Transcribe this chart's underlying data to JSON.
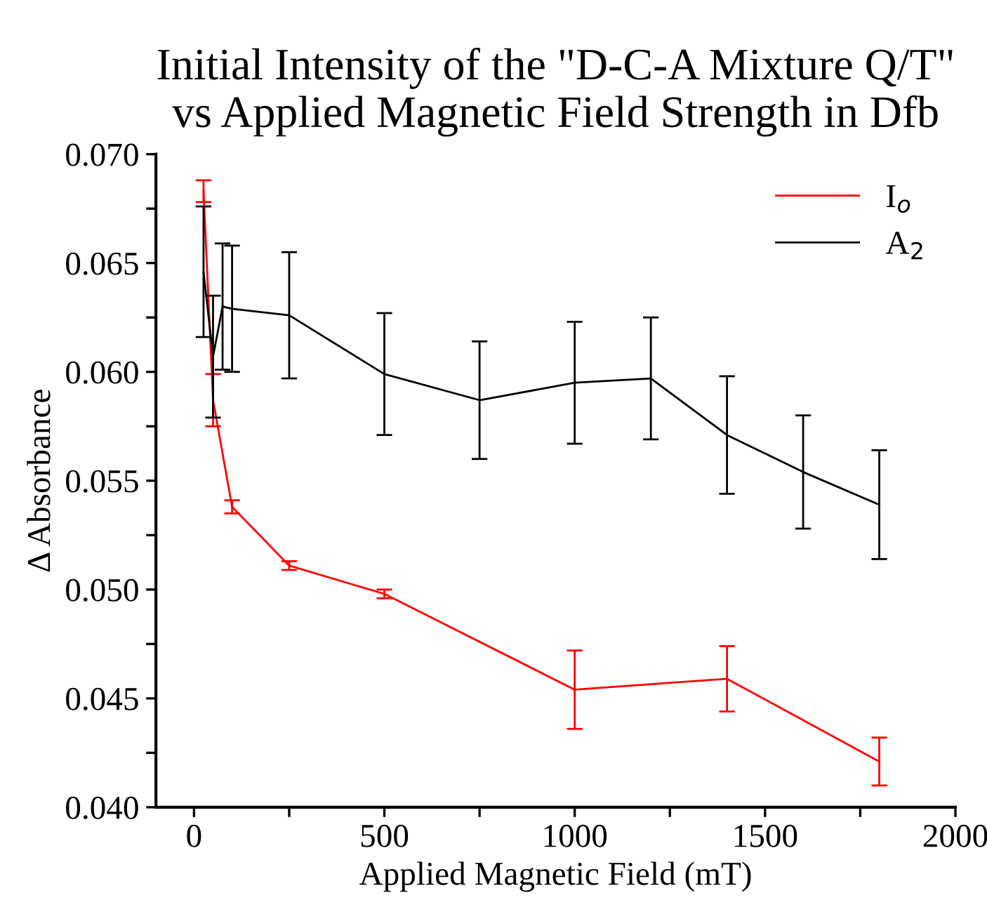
{
  "chart_data": {
    "type": "line",
    "title": "Initial Intensity of the \"D-C-A Mixture Q/T\"\nvs Applied Magnetic Field Strength in Dfb",
    "xlabel": "Applied Magnetic Field (mT)",
    "ylabel": "Δ Absorbance",
    "series": [
      {
        "name": "I$_{o}$",
        "color": "#ff0000",
        "x": [
          25,
          50,
          100,
          250,
          500,
          1000,
          1400,
          1800
        ],
        "values": [
          0.0683,
          0.0587,
          0.0538,
          0.0511,
          0.0498,
          0.0454,
          0.0459,
          0.0421
        ],
        "errors": [
          0.0005,
          0.0012,
          0.0003,
          0.0002,
          0.0002,
          0.0018,
          0.0015,
          0.0011
        ]
      },
      {
        "name": "A$_{2}$",
        "color": "#000000",
        "x": [
          25,
          50,
          75,
          100,
          250,
          500,
          750,
          1000,
          1200,
          1400,
          1600,
          1800
        ],
        "values": [
          0.0646,
          0.0607,
          0.063,
          0.0629,
          0.0626,
          0.0599,
          0.0587,
          0.0595,
          0.0597,
          0.0571,
          0.0554,
          0.0539
        ],
        "errors": [
          0.003,
          0.0028,
          0.0029,
          0.0029,
          0.0029,
          0.0028,
          0.0027,
          0.0028,
          0.0028,
          0.0027,
          0.0026,
          0.0025
        ]
      }
    ],
    "xlim": [
      -100,
      2000
    ],
    "xticks": [
      0,
      {
        "value": 250,
        "label": null
      },
      500,
      {
        "value": 750,
        "label": null
      },
      1000,
      {
        "value": 1250,
        "label": null
      },
      1500,
      {
        "value": 1750,
        "label": null
      },
      2000
    ],
    "ylim": [
      0.04,
      0.07
    ],
    "yticks": [
      {
        "value": 0.04,
        "label": "0.040"
      },
      {
        "value": 0.0425,
        "label": null
      },
      {
        "value": 0.045,
        "label": "0.045"
      },
      {
        "value": 0.0475,
        "label": null
      },
      {
        "value": 0.05,
        "label": "0.050"
      },
      {
        "value": 0.0525,
        "label": null
      },
      {
        "value": 0.055,
        "label": "0.055"
      },
      {
        "value": 0.0575,
        "label": null
      },
      {
        "value": 0.06,
        "label": "0.060"
      },
      {
        "value": 0.0625,
        "label": null
      },
      {
        "value": 0.065,
        "label": "0.065"
      },
      {
        "value": 0.0675,
        "label": null
      },
      {
        "value": 0.07,
        "label": "0.070"
      }
    ],
    "legend": "top right",
    "grid": false,
    "marker": "none",
    "line_style": "solid"
  }
}
